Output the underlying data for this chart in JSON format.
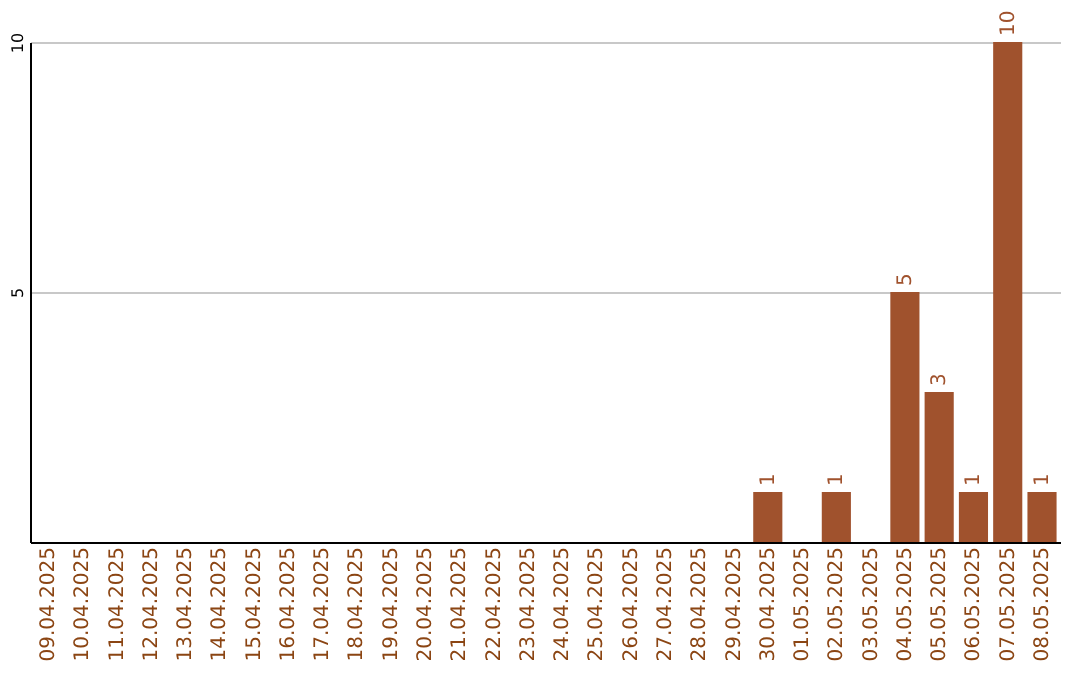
{
  "chart_data": {
    "type": "bar",
    "categories": [
      "09.04.2025",
      "10.04.2025",
      "11.04.2025",
      "12.04.2025",
      "13.04.2025",
      "14.04.2025",
      "15.04.2025",
      "16.04.2025",
      "17.04.2025",
      "18.04.2025",
      "19.04.2025",
      "20.04.2025",
      "21.04.2025",
      "22.04.2025",
      "23.04.2025",
      "24.04.2025",
      "25.04.2025",
      "26.04.2025",
      "27.04.2025",
      "28.04.2025",
      "29.04.2025",
      "30.04.2025",
      "01.05.2025",
      "02.05.2025",
      "03.05.2025",
      "04.05.2025",
      "05.05.2025",
      "06.05.2025",
      "07.05.2025",
      "08.05.2025"
    ],
    "values": [
      null,
      null,
      null,
      null,
      null,
      null,
      null,
      null,
      null,
      null,
      null,
      null,
      null,
      null,
      null,
      null,
      null,
      null,
      null,
      null,
      null,
      1,
      null,
      1,
      null,
      5,
      3,
      1,
      10,
      1
    ],
    "color": "#a0522d",
    "ylim": [
      0,
      10
    ],
    "yticks": [
      5,
      10
    ],
    "grid": "y",
    "data_labels": true
  }
}
